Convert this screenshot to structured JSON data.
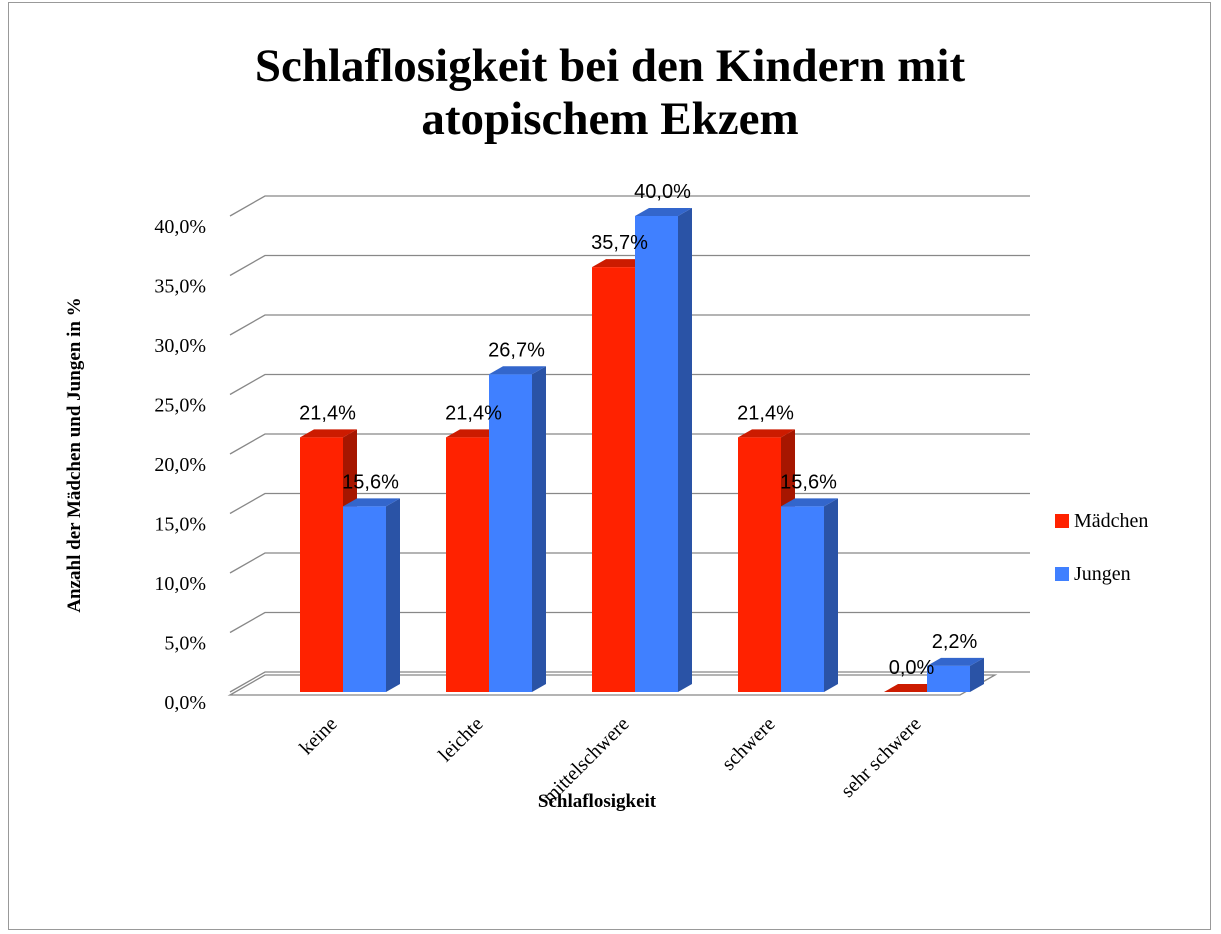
{
  "chart_data": {
    "type": "bar3d",
    "title": "Schlaflosigkeit bei den Kindern mit atopischem Ekzem",
    "xlabel": "Schlaflosigkeit",
    "ylabel": "Anzahl der Mädchen und Jungen in %",
    "categories": [
      "keine",
      "leichte",
      "mittelschwere",
      "schwere",
      "sehr schwere"
    ],
    "series": [
      {
        "name": "Mädchen",
        "color": "#ff2200",
        "values": [
          21.4,
          21.4,
          35.7,
          21.4,
          0.0
        ],
        "value_labels": [
          "21,4%",
          "21,4%",
          "35,7%",
          "21,4%",
          "0,0%"
        ]
      },
      {
        "name": "Jungen",
        "color": "#4080ff",
        "values": [
          15.6,
          26.7,
          40.0,
          15.6,
          2.2
        ],
        "value_labels": [
          "15,6%",
          "26,7%",
          "40,0%",
          "15,6%",
          "2,2%"
        ]
      }
    ],
    "ylim": [
      0,
      40
    ],
    "yticks": [
      {
        "value": 0,
        "label": "0,0%"
      },
      {
        "value": 5,
        "label": "5,0%"
      },
      {
        "value": 10,
        "label": "10,0%"
      },
      {
        "value": 15,
        "label": "15,0%"
      },
      {
        "value": 20,
        "label": "20,0%"
      },
      {
        "value": 25,
        "label": "25,0%"
      },
      {
        "value": 30,
        "label": "30,0%"
      },
      {
        "value": 35,
        "label": "35,0%"
      },
      {
        "value": 40,
        "label": "40,0%"
      }
    ],
    "grid": true,
    "legend": "right"
  }
}
